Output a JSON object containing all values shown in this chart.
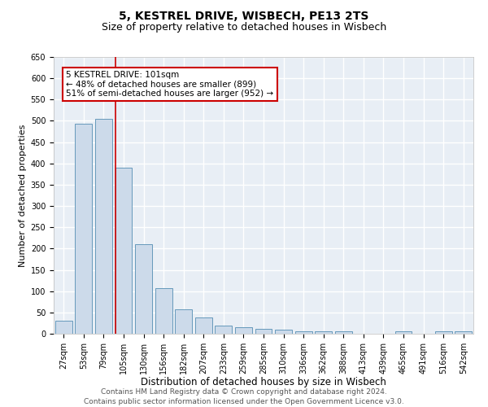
{
  "title1": "5, KESTREL DRIVE, WISBECH, PE13 2TS",
  "title2": "Size of property relative to detached houses in Wisbech",
  "xlabel": "Distribution of detached houses by size in Wisbech",
  "ylabel": "Number of detached properties",
  "categories": [
    "27sqm",
    "53sqm",
    "79sqm",
    "105sqm",
    "130sqm",
    "156sqm",
    "182sqm",
    "207sqm",
    "233sqm",
    "259sqm",
    "285sqm",
    "310sqm",
    "336sqm",
    "362sqm",
    "388sqm",
    "413sqm",
    "439sqm",
    "465sqm",
    "491sqm",
    "516sqm",
    "542sqm"
  ],
  "values": [
    30,
    493,
    504,
    390,
    210,
    108,
    58,
    38,
    20,
    15,
    12,
    9,
    5,
    5,
    5,
    0,
    0,
    5,
    0,
    5,
    5
  ],
  "bar_color": "#ccdaea",
  "bar_edge_color": "#6699bb",
  "vline_x_index": 3,
  "vline_color": "#cc0000",
  "annotation_text": "5 KESTREL DRIVE: 101sqm\n← 48% of detached houses are smaller (899)\n51% of semi-detached houses are larger (952) →",
  "box_color": "#cc0000",
  "ylim": [
    0,
    650
  ],
  "yticks": [
    0,
    50,
    100,
    150,
    200,
    250,
    300,
    350,
    400,
    450,
    500,
    550,
    600,
    650
  ],
  "footer": "Contains HM Land Registry data © Crown copyright and database right 2024.\nContains public sector information licensed under the Open Government Licence v3.0.",
  "bg_color": "#e8eef5",
  "grid_color": "#ffffff",
  "title1_fontsize": 10,
  "title2_fontsize": 9,
  "xlabel_fontsize": 8.5,
  "ylabel_fontsize": 8,
  "tick_fontsize": 7,
  "footer_fontsize": 6.5,
  "annotation_fontsize": 7.5
}
